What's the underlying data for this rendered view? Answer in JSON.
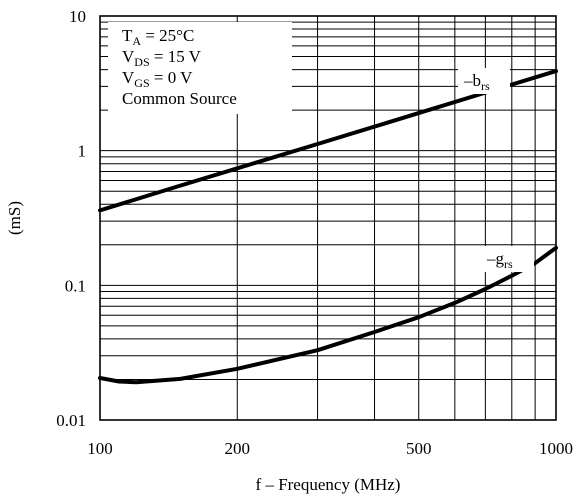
{
  "chart_data": {
    "type": "line",
    "title": "",
    "xlabel": "f – Frequency (MHz)",
    "ylabel": "(mS)",
    "xscale": "log",
    "yscale": "log",
    "xlim": [
      100,
      1000
    ],
    "ylim": [
      0.01,
      10
    ],
    "grid": true,
    "x_tick_labels": [
      {
        "value": 100,
        "label": "100"
      },
      {
        "value": 200,
        "label": "200"
      },
      {
        "value": 500,
        "label": "500"
      },
      {
        "value": 1000,
        "label": "1000"
      }
    ],
    "y_tick_labels": [
      {
        "value": 0.01,
        "label": "0.01"
      },
      {
        "value": 0.1,
        "label": "0.1"
      },
      {
        "value": 1,
        "label": "1"
      },
      {
        "value": 10,
        "label": "10"
      }
    ],
    "conditions": {
      "ta": {
        "main": "T",
        "sub": "A",
        "rest": " = 25°C"
      },
      "vds": {
        "main": "V",
        "sub": "DS",
        "rest": " = 15 V"
      },
      "vgs": {
        "main": "V",
        "sub": "GS",
        "rest": " = 0 V"
      },
      "mode": "Common Source"
    },
    "series": [
      {
        "name": "–brs",
        "label_main": "–b",
        "label_sub": "rs",
        "x": [
          100,
          150,
          200,
          300,
          500,
          700,
          1000
        ],
        "y": [
          0.36,
          0.55,
          0.74,
          1.12,
          1.9,
          2.7,
          3.9
        ]
      },
      {
        "name": "–grs",
        "label_main": "–g",
        "label_sub": "rs",
        "x": [
          100,
          110,
          120,
          150,
          200,
          300,
          400,
          500,
          600,
          700,
          800,
          900,
          1000
        ],
        "y": [
          0.0205,
          0.0193,
          0.0191,
          0.0202,
          0.024,
          0.033,
          0.045,
          0.058,
          0.074,
          0.094,
          0.118,
          0.146,
          0.19
        ]
      }
    ]
  }
}
